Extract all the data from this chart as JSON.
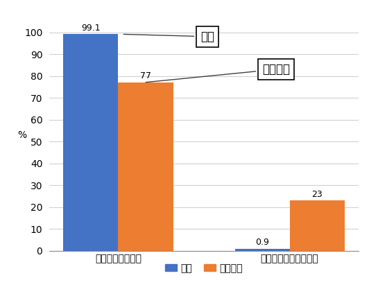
{
  "categories": [
    "外出をする（計）",
    "ほとんど外出をしない"
  ],
  "series": [
    {
      "name": "良い",
      "values": [
        99.1,
        0.9
      ],
      "color": "#4472C4"
    },
    {
      "name": "良くない",
      "values": [
        77,
        23
      ],
      "color": "#ED7D31"
    }
  ],
  "ylabel": "%",
  "ylim": [
    0,
    110
  ],
  "yticks": [
    0,
    10,
    20,
    30,
    40,
    50,
    60,
    70,
    80,
    90,
    100
  ],
  "bar_width": 0.32,
  "callout_good_text": "良い",
  "callout_bad_text": "良くない",
  "background_color": "#FFFFFF",
  "grid_color": "#D0D0D0",
  "border_color": "#5B9BD5"
}
